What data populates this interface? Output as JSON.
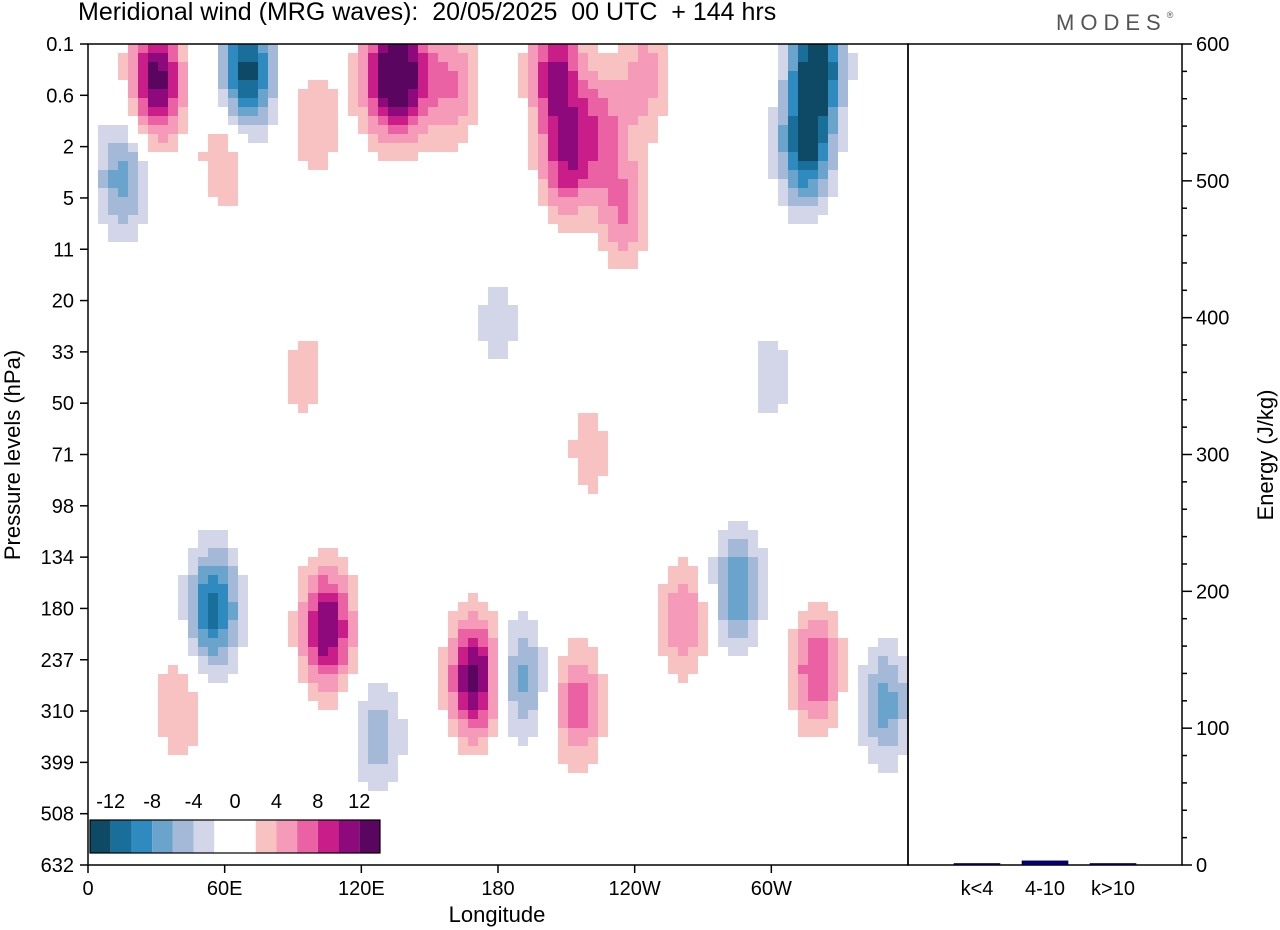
{
  "title": "Meridional wind (MRG waves):  20/05/2025  00 UTC  + 144 hrs",
  "brand": {
    "name": "MODES",
    "mark": "®"
  },
  "chart_data": [
    {
      "type": "heatmap",
      "title": "Meridional wind (MRG waves):  20/05/2025  00 UTC  + 144 hrs",
      "xlabel": "Longitude",
      "ylabel": "Pressure levels (hPa)",
      "x_ticks": [
        "0",
        "60E",
        "120E",
        "180",
        "120W",
        "60W"
      ],
      "y_ticks": [
        "0.1",
        "0.6",
        "2",
        "5",
        "11",
        "20",
        "33",
        "50",
        "71",
        "98",
        "134",
        "180",
        "237",
        "310",
        "399",
        "508",
        "632"
      ],
      "colorbar": {
        "labels": [
          "-12",
          "-8",
          "-4",
          "0",
          "4",
          "8",
          "12"
        ],
        "colors": [
          "#0e4a66",
          "#1a6e9a",
          "#2f8bbf",
          "#6aa3cc",
          "#a4b9d8",
          "#d2d6e8",
          "#ffffff",
          "#ffffff",
          "#f8c2c2",
          "#f59ab8",
          "#ea62a4",
          "#c91e8a",
          "#8e0a7c",
          "#5a0560"
        ]
      },
      "blobs": [
        {
          "lon": 30,
          "p": 0.35,
          "v": 13
        },
        {
          "lon": 70,
          "p": 0.25,
          "v": -13
        },
        {
          "lon": 130,
          "p": 0.3,
          "v": 9
        },
        {
          "lon": 140,
          "p": 0.3,
          "v": 10
        },
        {
          "lon": 160,
          "p": 0.4,
          "v": 6
        },
        {
          "lon": 205,
          "p": 0.25,
          "v": 10
        },
        {
          "lon": 245,
          "p": 0.3,
          "v": 5
        },
        {
          "lon": 320,
          "p": 0.2,
          "v": -14
        },
        {
          "lon": 315,
          "p": 2.0,
          "v": -12
        },
        {
          "lon": 225,
          "p": 1.2,
          "v": 6
        },
        {
          "lon": 210,
          "p": 2.5,
          "v": 9
        },
        {
          "lon": 235,
          "p": 6,
          "v": 6
        },
        {
          "lon": 15,
          "p": 3.5,
          "v": -7
        },
        {
          "lon": 60,
          "p": 2.5,
          "v": 4
        },
        {
          "lon": 100,
          "p": 1.2,
          "v": 4
        },
        {
          "lon": 55,
          "p": 180,
          "v": -11
        },
        {
          "lon": 105,
          "p": 200,
          "v": 12
        },
        {
          "lon": 170,
          "p": 260,
          "v": 13
        },
        {
          "lon": 190,
          "p": 260,
          "v": -7
        },
        {
          "lon": 215,
          "p": 300,
          "v": 7
        },
        {
          "lon": 262,
          "p": 190,
          "v": 6
        },
        {
          "lon": 285,
          "p": 160,
          "v": -8
        },
        {
          "lon": 320,
          "p": 250,
          "v": 8
        },
        {
          "lon": 350,
          "p": 300,
          "v": -7
        },
        {
          "lon": 40,
          "p": 300,
          "v": 4
        },
        {
          "lon": 128,
          "p": 350,
          "v": -5
        },
        {
          "lon": 220,
          "p": 70,
          "v": 3
        },
        {
          "lon": 180,
          "p": 25,
          "v": -3
        },
        {
          "lon": 300,
          "p": 40,
          "v": -3
        },
        {
          "lon": 95,
          "p": 40,
          "v": 3
        }
      ]
    },
    {
      "type": "bar",
      "ylabel": "Energy (J/kg)",
      "ylim": [
        0,
        600
      ],
      "y_ticks": [
        "0",
        "100",
        "200",
        "300",
        "400",
        "500",
        "600"
      ],
      "categories": [
        "k<4",
        "4-10",
        "k>10"
      ],
      "values": [
        0.5,
        3,
        0.5
      ],
      "bar_colors": [
        "#000080",
        "#000080",
        "#000080"
      ]
    }
  ]
}
